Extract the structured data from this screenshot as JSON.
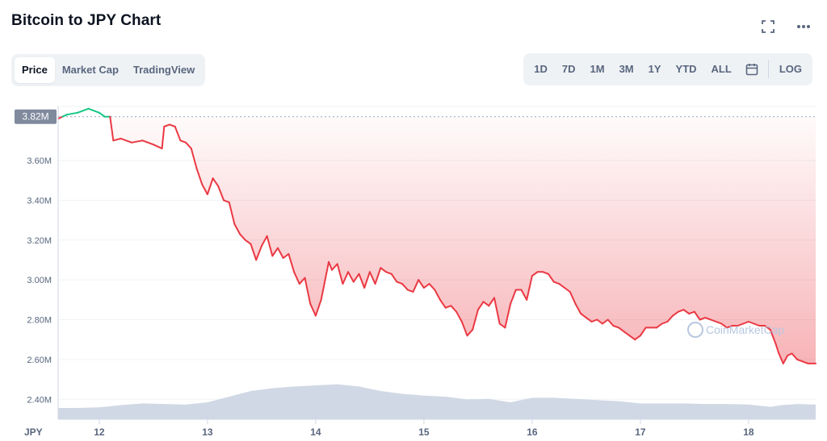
{
  "header": {
    "title": "Bitcoin to JPY Chart"
  },
  "tabs": [
    "Price",
    "Market Cap",
    "TradingView"
  ],
  "active_tab": "Price",
  "ranges": [
    "1D",
    "7D",
    "1M",
    "3M",
    "1Y",
    "YTD",
    "ALL"
  ],
  "log_label": "LOG",
  "watermark": "CoinMarketCap",
  "colors": {
    "up": "#16c784",
    "down": "#ea3943",
    "volume": "#cfd6e4",
    "accent_fill": "#f7a4a9"
  },
  "chart_data": {
    "type": "line",
    "title": "Bitcoin to JPY Chart",
    "xlabel": "JPY",
    "ylabel": "",
    "price_label": "3.82M",
    "reference_value": 3820000,
    "ylim": [
      2300000,
      3920000
    ],
    "xlim": [
      11.62,
      18.62
    ],
    "y_ticks": [
      {
        "value": 2400000,
        "label": "2.40M"
      },
      {
        "value": 2600000,
        "label": "2.60M"
      },
      {
        "value": 2800000,
        "label": "2.80M"
      },
      {
        "value": 3000000,
        "label": "3.00M"
      },
      {
        "value": 3200000,
        "label": "3.20M"
      },
      {
        "value": 3400000,
        "label": "3.40M"
      },
      {
        "value": 3600000,
        "label": "3.60M"
      }
    ],
    "x_ticks": [
      {
        "value": 12,
        "label": "12"
      },
      {
        "value": 13,
        "label": "13"
      },
      {
        "value": 14,
        "label": "14"
      },
      {
        "value": 15,
        "label": "15"
      },
      {
        "value": 16,
        "label": "16"
      },
      {
        "value": 17,
        "label": "17"
      },
      {
        "value": 18,
        "label": "18"
      }
    ],
    "grid": true,
    "series": [
      {
        "x": [
          11.62,
          11.7,
          11.8,
          11.9,
          12.0,
          12.05,
          12.1,
          12.13,
          12.2,
          12.3,
          12.4,
          12.5,
          12.58,
          12.6,
          12.65,
          12.7,
          12.75,
          12.8,
          12.85,
          12.9,
          12.95,
          13.0,
          13.05,
          13.1,
          13.15,
          13.2,
          13.25,
          13.3,
          13.35,
          13.4,
          13.45,
          13.5,
          13.55,
          13.6,
          13.65,
          13.7,
          13.75,
          13.8,
          13.85,
          13.9,
          13.95,
          14.0,
          14.05,
          14.08,
          14.12,
          14.15,
          14.2,
          14.25,
          14.3,
          14.35,
          14.4,
          14.45,
          14.5,
          14.55,
          14.6,
          14.65,
          14.7,
          14.75,
          14.8,
          14.85,
          14.9,
          14.95,
          15.0,
          15.05,
          15.1,
          15.15,
          15.2,
          15.25,
          15.3,
          15.35,
          15.4,
          15.45,
          15.5,
          15.55,
          15.6,
          15.65,
          15.7,
          15.75,
          15.8,
          15.85,
          15.9,
          15.95,
          16.0,
          16.05,
          16.1,
          16.15,
          16.2,
          16.25,
          16.3,
          16.35,
          16.4,
          16.45,
          16.5,
          16.55,
          16.6,
          16.65,
          16.7,
          16.75,
          16.8,
          16.85,
          16.9,
          16.95,
          17.0,
          17.05,
          17.1,
          17.15,
          17.2,
          17.25,
          17.3,
          17.35,
          17.4,
          17.45,
          17.5,
          17.55,
          17.6,
          17.65,
          17.7,
          17.75,
          17.8,
          17.85,
          17.9,
          17.95,
          18.0,
          18.05,
          18.1,
          18.15,
          18.2,
          18.25,
          18.28,
          18.32,
          18.36,
          18.4,
          18.45,
          18.5,
          18.55,
          18.62
        ],
        "y": [
          3810000,
          3830000,
          3840000,
          3860000,
          3840000,
          3820000,
          3820000,
          3700000,
          3710000,
          3690000,
          3700000,
          3680000,
          3660000,
          3770000,
          3780000,
          3770000,
          3700000,
          3690000,
          3660000,
          3560000,
          3480000,
          3430000,
          3510000,
          3470000,
          3400000,
          3390000,
          3280000,
          3230000,
          3200000,
          3180000,
          3100000,
          3170000,
          3220000,
          3120000,
          3160000,
          3110000,
          3130000,
          3040000,
          2980000,
          3010000,
          2880000,
          2820000,
          2900000,
          2980000,
          3090000,
          3050000,
          3080000,
          2980000,
          3040000,
          2990000,
          3030000,
          2960000,
          3040000,
          2980000,
          3060000,
          3040000,
          3030000,
          2990000,
          2980000,
          2950000,
          2940000,
          3000000,
          2960000,
          2980000,
          2950000,
          2900000,
          2860000,
          2870000,
          2840000,
          2790000,
          2720000,
          2750000,
          2850000,
          2890000,
          2870000,
          2910000,
          2780000,
          2760000,
          2880000,
          2950000,
          2950000,
          2900000,
          3020000,
          3040000,
          3040000,
          3030000,
          2990000,
          2980000,
          2960000,
          2940000,
          2880000,
          2830000,
          2810000,
          2790000,
          2800000,
          2780000,
          2800000,
          2770000,
          2760000,
          2740000,
          2720000,
          2700000,
          2720000,
          2760000,
          2760000,
          2760000,
          2780000,
          2790000,
          2820000,
          2840000,
          2850000,
          2830000,
          2840000,
          2800000,
          2810000,
          2800000,
          2790000,
          2780000,
          2760000,
          2770000,
          2770000,
          2780000,
          2790000,
          2780000,
          2770000,
          2770000,
          2750000,
          2680000,
          2630000,
          2580000,
          2620000,
          2630000,
          2600000,
          2590000,
          2580000,
          2580000
        ]
      },
      {
        "name": "Volume",
        "x": [
          11.62,
          11.8,
          12.0,
          12.2,
          12.4,
          12.6,
          12.8,
          13.0,
          13.2,
          13.4,
          13.6,
          13.8,
          14.0,
          14.2,
          14.4,
          14.6,
          14.8,
          15.0,
          15.2,
          15.4,
          15.6,
          15.8,
          16.0,
          16.2,
          16.4,
          16.6,
          16.8,
          17.0,
          17.2,
          17.4,
          17.6,
          17.8,
          18.0,
          18.2,
          18.3,
          18.45,
          18.62
        ],
        "level": [
          0.2,
          0.2,
          0.21,
          0.25,
          0.28,
          0.27,
          0.26,
          0.3,
          0.4,
          0.5,
          0.55,
          0.58,
          0.6,
          0.62,
          0.58,
          0.5,
          0.45,
          0.42,
          0.4,
          0.35,
          0.36,
          0.3,
          0.38,
          0.38,
          0.36,
          0.34,
          0.32,
          0.28,
          0.28,
          0.28,
          0.27,
          0.27,
          0.26,
          0.22,
          0.25,
          0.27,
          0.26
        ]
      }
    ]
  }
}
